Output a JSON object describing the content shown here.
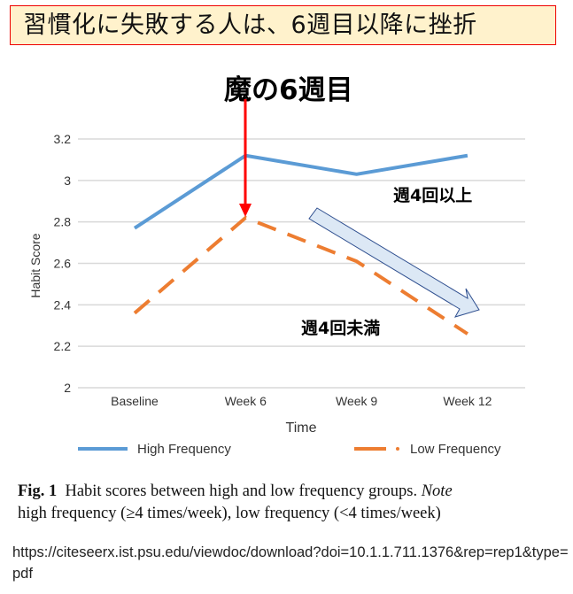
{
  "banner": {
    "text": "習慣化に失敗する人は、6週目以降に挫折"
  },
  "headline": {
    "text": "魔の6週目"
  },
  "annotations": {
    "high": "週4回以上",
    "low": "週4回未満"
  },
  "colors": {
    "high": "#5b9bd5",
    "low": "#ed7d31",
    "arrow_red": "#ff0000",
    "trend_arrow_fill": "#dce8f5",
    "trend_arrow_stroke": "#2f4f8f",
    "banner_bg": "#fff2cc"
  },
  "chart_data": {
    "type": "line",
    "title": "",
    "xlabel": "Time",
    "ylabel": "Habit Score",
    "categories": [
      "Baseline",
      "Week 6",
      "Week 9",
      "Week 12"
    ],
    "ylim": [
      2,
      3.2
    ],
    "yticks": [
      "2",
      "2.2",
      "2.4",
      "2.6",
      "2.8",
      "3",
      "3.2"
    ],
    "grid": true,
    "legend_position": "bottom",
    "series": [
      {
        "name": "High Frequency",
        "style": "solid",
        "values": [
          2.77,
          3.12,
          3.03,
          3.12
        ]
      },
      {
        "name": "Low Frequency",
        "style": "dashed",
        "values": [
          2.36,
          2.82,
          2.61,
          2.26
        ]
      }
    ]
  },
  "caption": {
    "label": "Fig. 1",
    "text_part1": "Habit scores between high and low frequency groups. ",
    "note": "Note",
    "text_part2": "high frequency (≥4 times/week), low frequency (<4 times/week)"
  },
  "source_url": "https://citeseerx.ist.psu.edu/viewdoc/download?doi=10.1.1.711.1376&rep=rep1&type=pdf"
}
